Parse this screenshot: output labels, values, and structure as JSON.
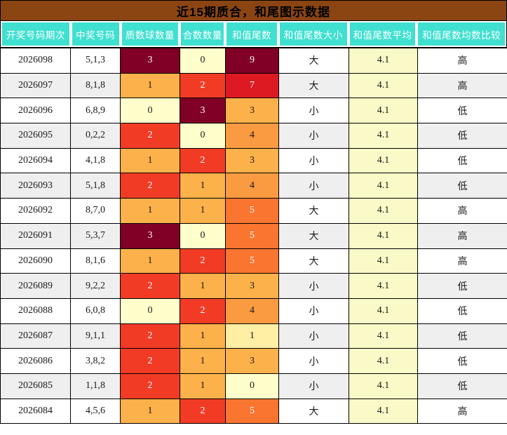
{
  "title": "近15期质合，和尾图示数据",
  "theme": {
    "title_bg": "#8B4513",
    "header_bg": "#40E0D0",
    "header_text": "#FFFFFF",
    "row_alt_bg": "#EFEFEF",
    "avg_col_bg": "#FAFAC8",
    "heat_low": "#FFFFCC",
    "heat_high": "#800026"
  },
  "table": {
    "headers": [
      "开奖号码期次",
      "中奖号码",
      "质数球数量",
      "合数数量",
      "和值尾数",
      "和值尾数大小",
      "和值尾数平均",
      "和值尾数均数比较"
    ],
    "rows": [
      {
        "period": "2026098",
        "numbers": "5,1,3",
        "prime_count": "3",
        "prime_bg": "#800026",
        "prime_fg": "#FFFFFF",
        "composite_count": "0",
        "composite_bg": "#FFFFCC",
        "composite_fg": "#1A1A1A",
        "sum_tail": "9",
        "sum_tail_bg": "#800026",
        "sum_tail_fg": "#FFFFFF",
        "size": "大",
        "average": "4.1",
        "compare": "高"
      },
      {
        "period": "2026097",
        "numbers": "8,1,8",
        "prime_count": "1",
        "prime_bg": "#FCB14A",
        "prime_fg": "#1A1A1A",
        "composite_count": "2",
        "composite_bg": "#F23B25",
        "composite_fg": "#FFFFFF",
        "sum_tail": "7",
        "sum_tail_bg": "#DD1A22",
        "sum_tail_fg": "#FFFFFF",
        "size": "大",
        "average": "4.1",
        "compare": "高"
      },
      {
        "period": "2026096",
        "numbers": "6,8,9",
        "prime_count": "0",
        "prime_bg": "#FFFFCC",
        "prime_fg": "#1A1A1A",
        "composite_count": "3",
        "composite_bg": "#800026",
        "composite_fg": "#FFFFFF",
        "sum_tail": "3",
        "sum_tail_bg": "#FCB14A",
        "sum_tail_fg": "#1A1A1A",
        "size": "小",
        "average": "4.1",
        "compare": "低"
      },
      {
        "period": "2026095",
        "numbers": "0,2,2",
        "prime_count": "2",
        "prime_bg": "#F23B25",
        "prime_fg": "#FFFFFF",
        "composite_count": "0",
        "composite_bg": "#FFFFCC",
        "composite_fg": "#1A1A1A",
        "sum_tail": "4",
        "sum_tail_bg": "#FA9B41",
        "sum_tail_fg": "#1A1A1A",
        "size": "小",
        "average": "4.1",
        "compare": "低"
      },
      {
        "period": "2026094",
        "numbers": "4,1,8",
        "prime_count": "1",
        "prime_bg": "#FCB14A",
        "prime_fg": "#1A1A1A",
        "composite_count": "2",
        "composite_bg": "#F23B25",
        "composite_fg": "#FFFFFF",
        "sum_tail": "3",
        "sum_tail_bg": "#FCB14A",
        "sum_tail_fg": "#1A1A1A",
        "size": "小",
        "average": "4.1",
        "compare": "低"
      },
      {
        "period": "2026093",
        "numbers": "5,1,8",
        "prime_count": "2",
        "prime_bg": "#F23B25",
        "prime_fg": "#FFFFFF",
        "composite_count": "1",
        "composite_bg": "#FCB14A",
        "composite_fg": "#1A1A1A",
        "sum_tail": "4",
        "sum_tail_bg": "#FA9B41",
        "sum_tail_fg": "#1A1A1A",
        "size": "小",
        "average": "4.1",
        "compare": "低"
      },
      {
        "period": "2026092",
        "numbers": "8,7,0",
        "prime_count": "1",
        "prime_bg": "#FCB14A",
        "prime_fg": "#1A1A1A",
        "composite_count": "1",
        "composite_bg": "#FCB14A",
        "composite_fg": "#1A1A1A",
        "sum_tail": "5",
        "sum_tail_bg": "#F97530",
        "sum_tail_fg": "#FFFFFF",
        "size": "大",
        "average": "4.1",
        "compare": "高"
      },
      {
        "period": "2026091",
        "numbers": "5,3,7",
        "prime_count": "3",
        "prime_bg": "#800026",
        "prime_fg": "#FFFFFF",
        "composite_count": "0",
        "composite_bg": "#FFFFCC",
        "composite_fg": "#1A1A1A",
        "sum_tail": "5",
        "sum_tail_bg": "#F97530",
        "sum_tail_fg": "#FFFFFF",
        "size": "大",
        "average": "4.1",
        "compare": "高"
      },
      {
        "period": "2026090",
        "numbers": "8,1,6",
        "prime_count": "1",
        "prime_bg": "#FCB14A",
        "prime_fg": "#1A1A1A",
        "composite_count": "2",
        "composite_bg": "#F23B25",
        "composite_fg": "#FFFFFF",
        "sum_tail": "5",
        "sum_tail_bg": "#F97530",
        "sum_tail_fg": "#FFFFFF",
        "size": "大",
        "average": "4.1",
        "compare": "高"
      },
      {
        "period": "2026089",
        "numbers": "9,2,2",
        "prime_count": "2",
        "prime_bg": "#F23B25",
        "prime_fg": "#FFFFFF",
        "composite_count": "1",
        "composite_bg": "#FCB14A",
        "composite_fg": "#1A1A1A",
        "sum_tail": "3",
        "sum_tail_bg": "#FCB14A",
        "sum_tail_fg": "#1A1A1A",
        "size": "小",
        "average": "4.1",
        "compare": "低"
      },
      {
        "period": "2026088",
        "numbers": "6,0,8",
        "prime_count": "0",
        "prime_bg": "#FFFFCC",
        "prime_fg": "#1A1A1A",
        "composite_count": "2",
        "composite_bg": "#F23B25",
        "composite_fg": "#FFFFFF",
        "sum_tail": "4",
        "sum_tail_bg": "#FA9B41",
        "sum_tail_fg": "#1A1A1A",
        "size": "小",
        "average": "4.1",
        "compare": "低"
      },
      {
        "period": "2026087",
        "numbers": "9,1,1",
        "prime_count": "2",
        "prime_bg": "#F23B25",
        "prime_fg": "#FFFFFF",
        "composite_count": "1",
        "composite_bg": "#FCB14A",
        "composite_fg": "#1A1A1A",
        "sum_tail": "1",
        "sum_tail_bg": "#FEEFA4",
        "sum_tail_fg": "#1A1A1A",
        "size": "小",
        "average": "4.1",
        "compare": "低"
      },
      {
        "period": "2026086",
        "numbers": "3,8,2",
        "prime_count": "2",
        "prime_bg": "#F23B25",
        "prime_fg": "#FFFFFF",
        "composite_count": "1",
        "composite_bg": "#FCB14A",
        "composite_fg": "#1A1A1A",
        "sum_tail": "3",
        "sum_tail_bg": "#FCB14A",
        "sum_tail_fg": "#1A1A1A",
        "size": "小",
        "average": "4.1",
        "compare": "低"
      },
      {
        "period": "2026085",
        "numbers": "1,1,8",
        "prime_count": "2",
        "prime_bg": "#F23B25",
        "prime_fg": "#FFFFFF",
        "composite_count": "1",
        "composite_bg": "#FCB14A",
        "composite_fg": "#1A1A1A",
        "sum_tail": "0",
        "sum_tail_bg": "#FFFFCC",
        "sum_tail_fg": "#1A1A1A",
        "size": "小",
        "average": "4.1",
        "compare": "低"
      },
      {
        "period": "2026084",
        "numbers": "4,5,6",
        "prime_count": "1",
        "prime_bg": "#FCB14A",
        "prime_fg": "#1A1A1A",
        "composite_count": "2",
        "composite_bg": "#F23B25",
        "composite_fg": "#FFFFFF",
        "sum_tail": "5",
        "sum_tail_bg": "#F97530",
        "sum_tail_fg": "#FFFFFF",
        "size": "大",
        "average": "4.1",
        "compare": "高"
      }
    ]
  },
  "chart_data": {
    "type": "table",
    "title": "近15期质合，和尾图示数据",
    "columns": [
      "开奖号码期次",
      "中奖号码",
      "质数球数量",
      "合数数量",
      "和值尾数",
      "和值尾数大小",
      "和值尾数平均",
      "和值尾数均数比较"
    ],
    "rows": [
      [
        "2026098",
        "5,1,3",
        3,
        0,
        9,
        "大",
        4.1,
        "高"
      ],
      [
        "2026097",
        "8,1,8",
        1,
        2,
        7,
        "大",
        4.1,
        "高"
      ],
      [
        "2026096",
        "6,8,9",
        0,
        3,
        3,
        "小",
        4.1,
        "低"
      ],
      [
        "2026095",
        "0,2,2",
        2,
        0,
        4,
        "小",
        4.1,
        "低"
      ],
      [
        "2026094",
        "4,1,8",
        1,
        2,
        3,
        "小",
        4.1,
        "低"
      ],
      [
        "2026093",
        "5,1,8",
        2,
        1,
        4,
        "小",
        4.1,
        "低"
      ],
      [
        "2026092",
        "8,7,0",
        1,
        1,
        5,
        "大",
        4.1,
        "高"
      ],
      [
        "2026091",
        "5,3,7",
        3,
        0,
        5,
        "大",
        4.1,
        "高"
      ],
      [
        "2026090",
        "8,1,6",
        1,
        2,
        5,
        "大",
        4.1,
        "高"
      ],
      [
        "2026089",
        "9,2,2",
        2,
        1,
        3,
        "小",
        4.1,
        "低"
      ],
      [
        "2026088",
        "6,0,8",
        0,
        2,
        4,
        "小",
        4.1,
        "低"
      ],
      [
        "2026087",
        "9,1,1",
        2,
        1,
        1,
        "小",
        4.1,
        "低"
      ],
      [
        "2026086",
        "3,8,2",
        2,
        1,
        3,
        "小",
        4.1,
        "低"
      ],
      [
        "2026085",
        "1,1,8",
        2,
        1,
        0,
        "小",
        4.1,
        "低"
      ],
      [
        "2026084",
        "4,5,6",
        1,
        2,
        5,
        "大",
        4.1,
        "高"
      ]
    ],
    "heatmap_columns": [
      "质数球数量",
      "合数数量",
      "和值尾数"
    ],
    "heatmap_palette": [
      "#FFFFCC",
      "#FEEFA4",
      "#FCB14A",
      "#FA9B41",
      "#F97530",
      "#F23B25",
      "#DD1A22",
      "#800026"
    ],
    "heatmap_range_count_columns": [
      0,
      3
    ],
    "heatmap_range_tail_column": [
      0,
      9
    ]
  }
}
